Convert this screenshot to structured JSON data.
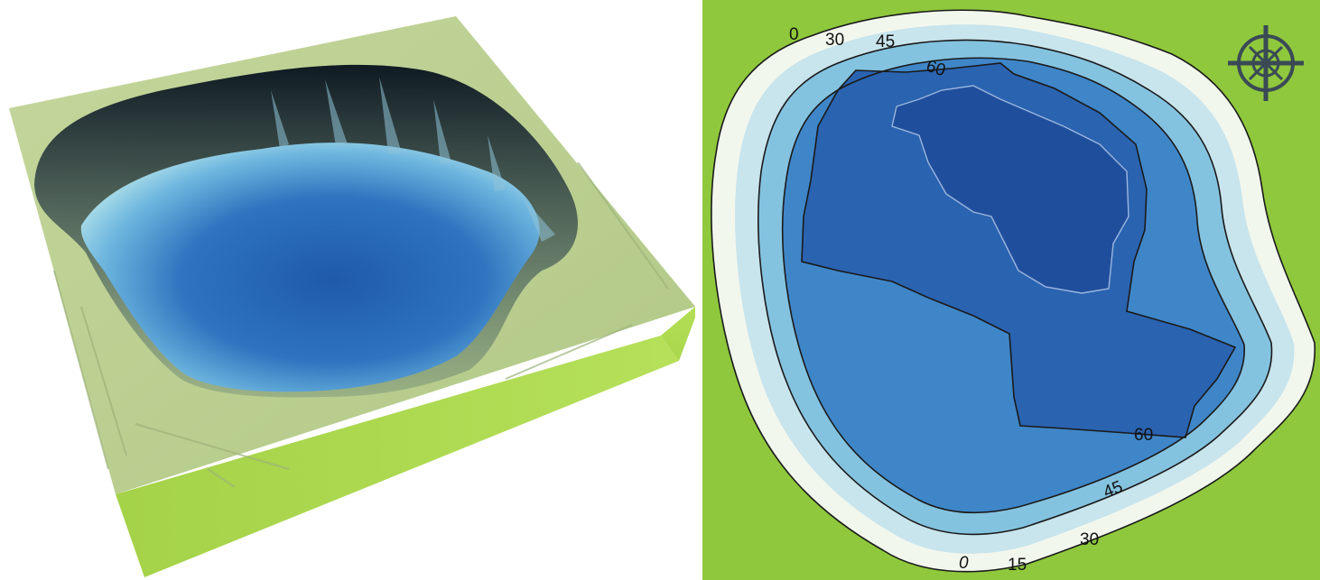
{
  "left_view": {
    "land_color": "#b9cf8c",
    "side_color": "#a8d646",
    "lake_deep_color": "#1d4f9e",
    "lake_shallow_color": "#7cc6e8"
  },
  "right_map": {
    "land_color": "#8fc83c",
    "contour_line_color": "#1a1a1a",
    "depth_colors": [
      "#f2f7ee",
      "#c8e4ec",
      "#84c3e0",
      "#3f86c8",
      "#2a63b0",
      "#1f4f9c"
    ],
    "contour_labels": {
      "top_0": "0",
      "top_30": "30",
      "top_45": "45",
      "top_60": "60",
      "bottom_60": "60",
      "bottom_45": "45",
      "bottom_30": "30",
      "bottom_15": "15",
      "bottom_0": "0"
    },
    "compass_icon": "compass-rose-icon"
  }
}
